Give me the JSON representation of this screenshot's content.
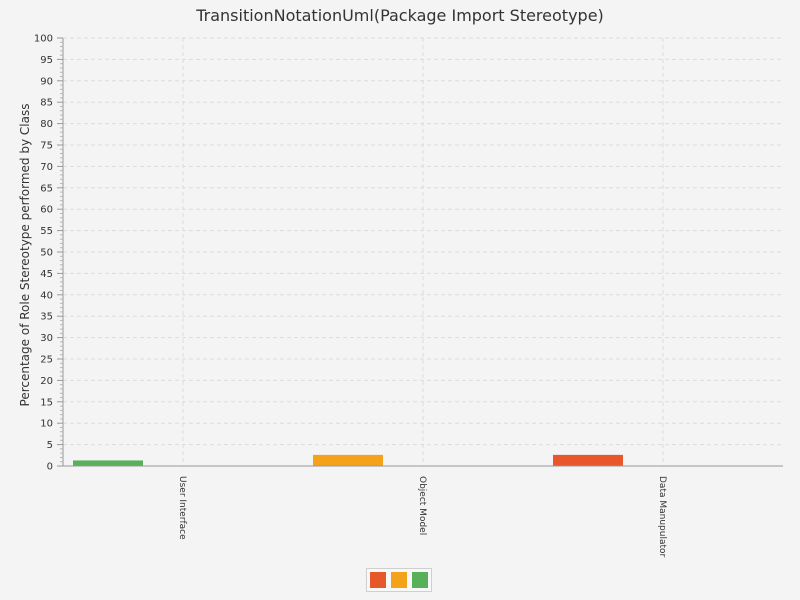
{
  "chart_data": {
    "type": "bar",
    "title": "TransitionNotationUml(Package Import Stereotype)",
    "xlabel": "",
    "ylabel": "Percentage of Role Stereotype performed by Class",
    "ylim": [
      0,
      100
    ],
    "ytick_step": 5,
    "grid": true,
    "legend_position": "bottom",
    "categories": [
      "User Interface",
      "Object Model",
      "Data Manupulator"
    ],
    "series": [
      {
        "color": "#e8572c",
        "values": [
          0,
          0,
          2.6
        ]
      },
      {
        "color": "#f4a21c",
        "values": [
          0,
          2.6,
          0
        ]
      },
      {
        "color": "#58b05a",
        "values": [
          1.3,
          0,
          0
        ]
      }
    ],
    "legend": [
      {
        "color": "#e8572c"
      },
      {
        "color": "#f4a21c"
      },
      {
        "color": "#58b05a"
      }
    ]
  }
}
